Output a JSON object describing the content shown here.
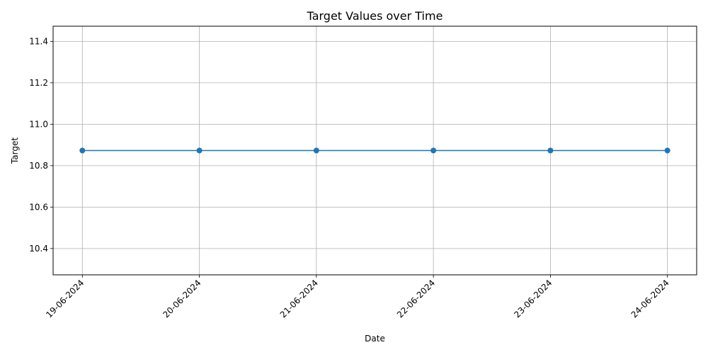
{
  "chart_data": {
    "type": "line",
    "title": "Target Values over Time",
    "xlabel": "Date",
    "ylabel": "Target",
    "x": [
      "19-06-2024",
      "20-06-2024",
      "21-06-2024",
      "22-06-2024",
      "23-06-2024",
      "24-06-2024"
    ],
    "series": [
      {
        "values": [
          10.873,
          10.873,
          10.873,
          10.873,
          10.873,
          10.873
        ],
        "color": "#1f77b4",
        "marker": "circle"
      }
    ],
    "ylim": [
      10.273,
      11.473
    ],
    "yticks": [
      10.4,
      10.6,
      10.8,
      11.0,
      11.2,
      11.4
    ],
    "ytick_labels": [
      "10.4",
      "10.6",
      "10.8",
      "11.0",
      "11.2",
      "11.4"
    ],
    "grid": true,
    "xtick_rotation": "45 degrees"
  }
}
